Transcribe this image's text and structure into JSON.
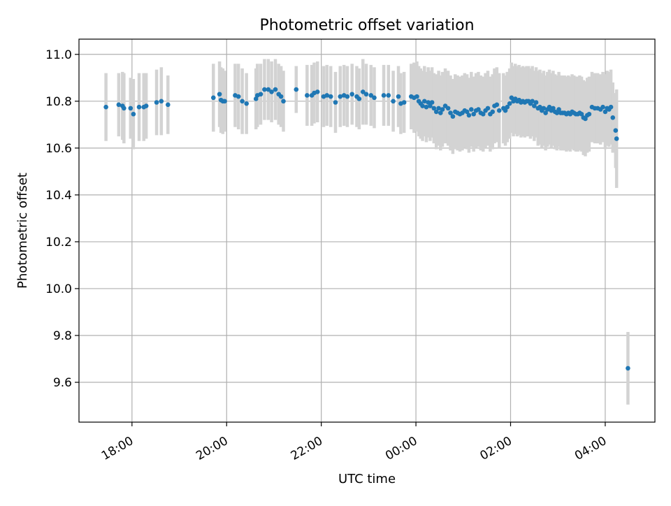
{
  "chart_data": {
    "type": "scatter",
    "title": "Photometric offset variation",
    "xlabel": "UTC time",
    "ylabel": "Photometric offset",
    "x_unit": "hours (UTC clock, day boundary crossed)",
    "xlim": [
      16.88,
      29.05
    ],
    "ylim": [
      9.43,
      11.065
    ],
    "x_ticks": [
      {
        "value": 18,
        "label": "18:00"
      },
      {
        "value": 20,
        "label": "20:00"
      },
      {
        "value": 22,
        "label": "22:00"
      },
      {
        "value": 24,
        "label": "00:00"
      },
      {
        "value": 26,
        "label": "02:00"
      },
      {
        "value": 28,
        "label": "04:00"
      }
    ],
    "y_ticks": [
      {
        "value": 9.6,
        "label": "9.6"
      },
      {
        "value": 9.8,
        "label": "9.8"
      },
      {
        "value": 10.0,
        "label": "10.0"
      },
      {
        "value": 10.2,
        "label": "10.2"
      },
      {
        "value": 10.4,
        "label": "10.4"
      },
      {
        "value": 10.6,
        "label": "10.6"
      },
      {
        "value": 10.8,
        "label": "10.8"
      },
      {
        "value": 11.0,
        "label": "11.0"
      }
    ],
    "grid": true,
    "colors": {
      "point": "#1f77b4",
      "errorbar": "#d3d3d3",
      "grid": "#b0b0b0"
    },
    "series": [
      {
        "points": [
          {
            "x": 17.45,
            "y": 10.775,
            "err": 0.145
          },
          {
            "x": 17.72,
            "y": 10.785,
            "err": 0.135
          },
          {
            "x": 17.8,
            "y": 10.78,
            "err": 0.145
          },
          {
            "x": 17.83,
            "y": 10.77,
            "err": 0.15
          },
          {
            "x": 17.97,
            "y": 10.77,
            "err": 0.13
          },
          {
            "x": 18.03,
            "y": 10.745,
            "err": 0.15
          },
          {
            "x": 18.15,
            "y": 10.775,
            "err": 0.145
          },
          {
            "x": 18.25,
            "y": 10.775,
            "err": 0.145
          },
          {
            "x": 18.3,
            "y": 10.78,
            "err": 0.14
          },
          {
            "x": 18.52,
            "y": 10.795,
            "err": 0.14
          },
          {
            "x": 18.62,
            "y": 10.8,
            "err": 0.145
          },
          {
            "x": 18.76,
            "y": 10.785,
            "err": 0.125
          },
          {
            "x": 19.72,
            "y": 10.815,
            "err": 0.145
          },
          {
            "x": 19.85,
            "y": 10.83,
            "err": 0.14
          },
          {
            "x": 19.88,
            "y": 10.805,
            "err": 0.14
          },
          {
            "x": 19.92,
            "y": 10.8,
            "err": 0.14
          },
          {
            "x": 19.96,
            "y": 10.8,
            "err": 0.13
          },
          {
            "x": 20.18,
            "y": 10.825,
            "err": 0.135
          },
          {
            "x": 20.25,
            "y": 10.82,
            "err": 0.14
          },
          {
            "x": 20.33,
            "y": 10.8,
            "err": 0.14
          },
          {
            "x": 20.42,
            "y": 10.79,
            "err": 0.13
          },
          {
            "x": 20.62,
            "y": 10.81,
            "err": 0.13
          },
          {
            "x": 20.65,
            "y": 10.825,
            "err": 0.135
          },
          {
            "x": 20.72,
            "y": 10.83,
            "err": 0.13
          },
          {
            "x": 20.8,
            "y": 10.85,
            "err": 0.13
          },
          {
            "x": 20.88,
            "y": 10.85,
            "err": 0.13
          },
          {
            "x": 20.95,
            "y": 10.84,
            "err": 0.13
          },
          {
            "x": 21.03,
            "y": 10.85,
            "err": 0.13
          },
          {
            "x": 21.1,
            "y": 10.83,
            "err": 0.13
          },
          {
            "x": 21.15,
            "y": 10.82,
            "err": 0.13
          },
          {
            "x": 21.2,
            "y": 10.8,
            "err": 0.13
          },
          {
            "x": 21.47,
            "y": 10.85,
            "err": 0.1
          },
          {
            "x": 21.7,
            "y": 10.825,
            "err": 0.13
          },
          {
            "x": 21.8,
            "y": 10.825,
            "err": 0.13
          },
          {
            "x": 21.85,
            "y": 10.835,
            "err": 0.13
          },
          {
            "x": 21.92,
            "y": 10.84,
            "err": 0.13
          },
          {
            "x": 22.05,
            "y": 10.82,
            "err": 0.13
          },
          {
            "x": 22.12,
            "y": 10.825,
            "err": 0.13
          },
          {
            "x": 22.2,
            "y": 10.82,
            "err": 0.13
          },
          {
            "x": 22.3,
            "y": 10.795,
            "err": 0.13
          },
          {
            "x": 22.4,
            "y": 10.82,
            "err": 0.13
          },
          {
            "x": 22.48,
            "y": 10.825,
            "err": 0.13
          },
          {
            "x": 22.55,
            "y": 10.82,
            "err": 0.13
          },
          {
            "x": 22.65,
            "y": 10.83,
            "err": 0.13
          },
          {
            "x": 22.75,
            "y": 10.82,
            "err": 0.13
          },
          {
            "x": 22.8,
            "y": 10.81,
            "err": 0.13
          },
          {
            "x": 22.88,
            "y": 10.84,
            "err": 0.14
          },
          {
            "x": 22.95,
            "y": 10.83,
            "err": 0.13
          },
          {
            "x": 23.05,
            "y": 10.825,
            "err": 0.13
          },
          {
            "x": 23.12,
            "y": 10.815,
            "err": 0.13
          },
          {
            "x": 23.32,
            "y": 10.825,
            "err": 0.13
          },
          {
            "x": 23.42,
            "y": 10.825,
            "err": 0.13
          },
          {
            "x": 23.52,
            "y": 10.8,
            "err": 0.13
          },
          {
            "x": 23.63,
            "y": 10.82,
            "err": 0.13
          },
          {
            "x": 23.68,
            "y": 10.79,
            "err": 0.13
          },
          {
            "x": 23.75,
            "y": 10.795,
            "err": 0.13
          },
          {
            "x": 23.9,
            "y": 10.82,
            "err": 0.14
          },
          {
            "x": 23.96,
            "y": 10.815,
            "err": 0.15
          },
          {
            "x": 24.02,
            "y": 10.82,
            "err": 0.15
          },
          {
            "x": 24.06,
            "y": 10.8,
            "err": 0.15
          },
          {
            "x": 24.1,
            "y": 10.79,
            "err": 0.15
          },
          {
            "x": 24.14,
            "y": 10.78,
            "err": 0.15
          },
          {
            "x": 24.18,
            "y": 10.8,
            "err": 0.15
          },
          {
            "x": 24.22,
            "y": 10.775,
            "err": 0.15
          },
          {
            "x": 24.26,
            "y": 10.795,
            "err": 0.15
          },
          {
            "x": 24.3,
            "y": 10.78,
            "err": 0.15
          },
          {
            "x": 24.34,
            "y": 10.795,
            "err": 0.15
          },
          {
            "x": 24.38,
            "y": 10.77,
            "err": 0.15
          },
          {
            "x": 24.43,
            "y": 10.755,
            "err": 0.16
          },
          {
            "x": 24.48,
            "y": 10.77,
            "err": 0.16
          },
          {
            "x": 24.52,
            "y": 10.75,
            "err": 0.16
          },
          {
            "x": 24.56,
            "y": 10.765,
            "err": 0.16
          },
          {
            "x": 24.62,
            "y": 10.78,
            "err": 0.16
          },
          {
            "x": 24.68,
            "y": 10.77,
            "err": 0.16
          },
          {
            "x": 24.73,
            "y": 10.75,
            "err": 0.16
          },
          {
            "x": 24.78,
            "y": 10.735,
            "err": 0.16
          },
          {
            "x": 24.83,
            "y": 10.755,
            "err": 0.16
          },
          {
            "x": 24.88,
            "y": 10.75,
            "err": 0.16
          },
          {
            "x": 24.93,
            "y": 10.745,
            "err": 0.16
          },
          {
            "x": 24.98,
            "y": 10.75,
            "err": 0.16
          },
          {
            "x": 25.03,
            "y": 10.76,
            "err": 0.16
          },
          {
            "x": 25.08,
            "y": 10.755,
            "err": 0.16
          },
          {
            "x": 25.12,
            "y": 10.74,
            "err": 0.16
          },
          {
            "x": 25.17,
            "y": 10.765,
            "err": 0.16
          },
          {
            "x": 25.22,
            "y": 10.745,
            "err": 0.16
          },
          {
            "x": 25.27,
            "y": 10.76,
            "err": 0.16
          },
          {
            "x": 25.32,
            "y": 10.765,
            "err": 0.16
          },
          {
            "x": 25.37,
            "y": 10.75,
            "err": 0.16
          },
          {
            "x": 25.42,
            "y": 10.745,
            "err": 0.16
          },
          {
            "x": 25.47,
            "y": 10.76,
            "err": 0.16
          },
          {
            "x": 25.52,
            "y": 10.77,
            "err": 0.16
          },
          {
            "x": 25.57,
            "y": 10.745,
            "err": 0.16
          },
          {
            "x": 25.62,
            "y": 10.755,
            "err": 0.16
          },
          {
            "x": 25.66,
            "y": 10.78,
            "err": 0.16
          },
          {
            "x": 25.71,
            "y": 10.785,
            "err": 0.16
          },
          {
            "x": 25.76,
            "y": 10.76,
            "err": 0.16
          },
          {
            "x": 25.85,
            "y": 10.77,
            "err": 0.15
          },
          {
            "x": 25.89,
            "y": 10.76,
            "err": 0.15
          },
          {
            "x": 25.93,
            "y": 10.775,
            "err": 0.15
          },
          {
            "x": 25.98,
            "y": 10.79,
            "err": 0.15
          },
          {
            "x": 26.02,
            "y": 10.815,
            "err": 0.15
          },
          {
            "x": 26.06,
            "y": 10.8,
            "err": 0.15
          },
          {
            "x": 26.1,
            "y": 10.81,
            "err": 0.15
          },
          {
            "x": 26.14,
            "y": 10.8,
            "err": 0.15
          },
          {
            "x": 26.18,
            "y": 10.805,
            "err": 0.15
          },
          {
            "x": 26.22,
            "y": 10.795,
            "err": 0.15
          },
          {
            "x": 26.26,
            "y": 10.8,
            "err": 0.15
          },
          {
            "x": 26.3,
            "y": 10.795,
            "err": 0.15
          },
          {
            "x": 26.34,
            "y": 10.8,
            "err": 0.15
          },
          {
            "x": 26.38,
            "y": 10.8,
            "err": 0.15
          },
          {
            "x": 26.42,
            "y": 10.79,
            "err": 0.15
          },
          {
            "x": 26.46,
            "y": 10.8,
            "err": 0.15
          },
          {
            "x": 26.5,
            "y": 10.78,
            "err": 0.15
          },
          {
            "x": 26.54,
            "y": 10.795,
            "err": 0.15
          },
          {
            "x": 26.58,
            "y": 10.77,
            "err": 0.16
          },
          {
            "x": 26.62,
            "y": 10.775,
            "err": 0.16
          },
          {
            "x": 26.66,
            "y": 10.76,
            "err": 0.16
          },
          {
            "x": 26.7,
            "y": 10.77,
            "err": 0.16
          },
          {
            "x": 26.74,
            "y": 10.75,
            "err": 0.16
          },
          {
            "x": 26.78,
            "y": 10.765,
            "err": 0.16
          },
          {
            "x": 26.82,
            "y": 10.775,
            "err": 0.16
          },
          {
            "x": 26.86,
            "y": 10.76,
            "err": 0.16
          },
          {
            "x": 26.9,
            "y": 10.77,
            "err": 0.16
          },
          {
            "x": 26.94,
            "y": 10.755,
            "err": 0.16
          },
          {
            "x": 26.98,
            "y": 10.75,
            "err": 0.16
          },
          {
            "x": 27.02,
            "y": 10.765,
            "err": 0.16
          },
          {
            "x": 27.06,
            "y": 10.75,
            "err": 0.16
          },
          {
            "x": 27.1,
            "y": 10.75,
            "err": 0.16
          },
          {
            "x": 27.14,
            "y": 10.75,
            "err": 0.16
          },
          {
            "x": 27.18,
            "y": 10.745,
            "err": 0.16
          },
          {
            "x": 27.22,
            "y": 10.75,
            "err": 0.16
          },
          {
            "x": 27.26,
            "y": 10.745,
            "err": 0.16
          },
          {
            "x": 27.3,
            "y": 10.755,
            "err": 0.16
          },
          {
            "x": 27.34,
            "y": 10.75,
            "err": 0.16
          },
          {
            "x": 27.38,
            "y": 10.745,
            "err": 0.16
          },
          {
            "x": 27.42,
            "y": 10.745,
            "err": 0.16
          },
          {
            "x": 27.46,
            "y": 10.75,
            "err": 0.16
          },
          {
            "x": 27.5,
            "y": 10.745,
            "err": 0.16
          },
          {
            "x": 27.54,
            "y": 10.73,
            "err": 0.16
          },
          {
            "x": 27.58,
            "y": 10.725,
            "err": 0.16
          },
          {
            "x": 27.62,
            "y": 10.74,
            "err": 0.16
          },
          {
            "x": 27.66,
            "y": 10.745,
            "err": 0.16
          },
          {
            "x": 27.72,
            "y": 10.775,
            "err": 0.15
          },
          {
            "x": 27.78,
            "y": 10.77,
            "err": 0.15
          },
          {
            "x": 27.84,
            "y": 10.77,
            "err": 0.15
          },
          {
            "x": 27.9,
            "y": 10.765,
            "err": 0.15
          },
          {
            "x": 27.95,
            "y": 10.775,
            "err": 0.15
          },
          {
            "x": 28.0,
            "y": 10.755,
            "err": 0.16
          },
          {
            "x": 28.04,
            "y": 10.77,
            "err": 0.16
          },
          {
            "x": 28.08,
            "y": 10.765,
            "err": 0.16
          },
          {
            "x": 28.12,
            "y": 10.775,
            "err": 0.16
          },
          {
            "x": 28.16,
            "y": 10.73,
            "err": 0.15
          },
          {
            "x": 28.22,
            "y": 10.675,
            "err": 0.16
          },
          {
            "x": 28.24,
            "y": 10.64,
            "err": 0.21
          },
          {
            "x": 28.48,
            "y": 9.66,
            "err": 0.155
          }
        ]
      }
    ]
  }
}
